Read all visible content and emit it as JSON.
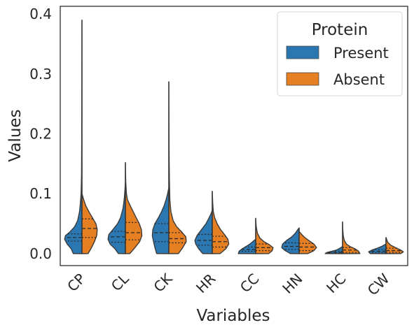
{
  "chart_data": {
    "type": "violin",
    "split": true,
    "xlabel": "Variables",
    "ylabel": "Values",
    "ylim": [
      -0.02,
      0.413
    ],
    "yticks": [
      0.0,
      0.1,
      0.2,
      0.3,
      0.4
    ],
    "ytick_labels": [
      "0.0",
      "0.1",
      "0.2",
      "0.3",
      "0.4"
    ],
    "categories": [
      "CP",
      "CL",
      "CK",
      "HR",
      "CC",
      "HN",
      "HC",
      "CW"
    ],
    "legend": {
      "title": "Protein",
      "placement": "upper-right"
    },
    "series": [
      {
        "name": "Present",
        "color": "#2b77b2",
        "violins": [
          {
            "min": 0.0,
            "max": 0.39,
            "q1": 0.021,
            "median": 0.027,
            "q3": 0.033,
            "profile": [
              [
                0.0,
                0.5
              ],
              [
                0.008,
                0.62
              ],
              [
                0.016,
                0.85
              ],
              [
                0.024,
                1.0
              ],
              [
                0.03,
                0.95
              ],
              [
                0.036,
                0.7
              ],
              [
                0.045,
                0.42
              ],
              [
                0.055,
                0.25
              ],
              [
                0.07,
                0.14
              ],
              [
                0.085,
                0.09
              ],
              [
                0.1,
                0.05
              ],
              [
                0.13,
                0.025
              ],
              [
                0.2,
                0.012
              ],
              [
                0.3,
                0.006
              ],
              [
                0.39,
                0.0
              ]
            ]
          },
          {
            "min": 0.0,
            "max": 0.118,
            "q1": 0.019,
            "median": 0.028,
            "q3": 0.037,
            "profile": [
              [
                0.0,
                0.4
              ],
              [
                0.008,
                0.6
              ],
              [
                0.016,
                0.88
              ],
              [
                0.024,
                1.0
              ],
              [
                0.032,
                0.95
              ],
              [
                0.04,
                0.72
              ],
              [
                0.05,
                0.45
              ],
              [
                0.06,
                0.28
              ],
              [
                0.075,
                0.14
              ],
              [
                0.09,
                0.07
              ],
              [
                0.105,
                0.03
              ],
              [
                0.118,
                0.0
              ]
            ]
          },
          {
            "min": 0.0,
            "max": 0.11,
            "q1": 0.02,
            "median": 0.035,
            "q3": 0.05,
            "profile": [
              [
                0.0,
                0.7
              ],
              [
                0.01,
                0.8
              ],
              [
                0.02,
                0.88
              ],
              [
                0.03,
                0.95
              ],
              [
                0.04,
                0.92
              ],
              [
                0.05,
                0.8
              ],
              [
                0.06,
                0.6
              ],
              [
                0.07,
                0.42
              ],
              [
                0.08,
                0.27
              ],
              [
                0.09,
                0.16
              ],
              [
                0.1,
                0.07
              ],
              [
                0.11,
                0.0
              ]
            ]
          },
          {
            "min": 0.0,
            "max": 0.072,
            "q1": 0.014,
            "median": 0.022,
            "q3": 0.032,
            "profile": [
              [
                0.0,
                0.55
              ],
              [
                0.008,
                0.78
              ],
              [
                0.016,
                0.95
              ],
              [
                0.022,
                1.0
              ],
              [
                0.03,
                0.88
              ],
              [
                0.04,
                0.62
              ],
              [
                0.05,
                0.36
              ],
              [
                0.06,
                0.18
              ],
              [
                0.066,
                0.08
              ],
              [
                0.072,
                0.0
              ]
            ]
          },
          {
            "min": 0.0,
            "max": 0.024,
            "q1": 0.004,
            "median": 0.007,
            "q3": 0.011,
            "profile": [
              [
                0.0,
                1.0
              ],
              [
                0.004,
                0.95
              ],
              [
                0.008,
                0.78
              ],
              [
                0.012,
                0.55
              ],
              [
                0.016,
                0.33
              ],
              [
                0.02,
                0.17
              ],
              [
                0.024,
                0.0
              ]
            ]
          },
          {
            "min": 0.0,
            "max": 0.043,
            "q1": 0.007,
            "median": 0.012,
            "q3": 0.018,
            "profile": [
              [
                0.0,
                0.5
              ],
              [
                0.005,
                0.8
              ],
              [
                0.01,
                1.0
              ],
              [
                0.016,
                0.95
              ],
              [
                0.022,
                0.72
              ],
              [
                0.028,
                0.42
              ],
              [
                0.034,
                0.22
              ],
              [
                0.039,
                0.1
              ],
              [
                0.043,
                0.0
              ]
            ]
          },
          {
            "min": 0.0,
            "max": 0.012,
            "q1": 0.001,
            "median": 0.002,
            "q3": 0.004,
            "profile": [
              [
                0.0,
                1.0
              ],
              [
                0.002,
                0.9
              ],
              [
                0.004,
                0.6
              ],
              [
                0.006,
                0.35
              ],
              [
                0.009,
                0.15
              ],
              [
                0.012,
                0.0
              ]
            ]
          },
          {
            "min": 0.0,
            "max": 0.016,
            "q1": 0.002,
            "median": 0.004,
            "q3": 0.007,
            "profile": [
              [
                0.0,
                0.9
              ],
              [
                0.003,
                1.0
              ],
              [
                0.006,
                0.8
              ],
              [
                0.009,
                0.5
              ],
              [
                0.012,
                0.25
              ],
              [
                0.016,
                0.0
              ]
            ]
          }
        ]
      },
      {
        "name": "Absent",
        "color": "#e67e22",
        "violins": [
          {
            "min": 0.0,
            "max": 0.1,
            "q1": 0.027,
            "median": 0.042,
            "q3": 0.058,
            "profile": [
              [
                0.0,
                0.35
              ],
              [
                0.01,
                0.55
              ],
              [
                0.02,
                0.72
              ],
              [
                0.03,
                0.85
              ],
              [
                0.04,
                0.88
              ],
              [
                0.05,
                0.8
              ],
              [
                0.06,
                0.6
              ],
              [
                0.07,
                0.4
              ],
              [
                0.08,
                0.22
              ],
              [
                0.09,
                0.1
              ],
              [
                0.1,
                0.0
              ]
            ]
          },
          {
            "min": 0.0,
            "max": 0.152,
            "q1": 0.023,
            "median": 0.035,
            "q3": 0.052,
            "profile": [
              [
                0.0,
                0.25
              ],
              [
                0.01,
                0.55
              ],
              [
                0.02,
                0.82
              ],
              [
                0.03,
                0.95
              ],
              [
                0.04,
                0.92
              ],
              [
                0.05,
                0.8
              ],
              [
                0.06,
                0.62
              ],
              [
                0.07,
                0.45
              ],
              [
                0.08,
                0.28
              ],
              [
                0.09,
                0.12
              ],
              [
                0.1,
                0.06
              ],
              [
                0.12,
                0.02
              ],
              [
                0.152,
                0.0
              ]
            ]
          },
          {
            "min": 0.0,
            "max": 0.287,
            "q1": 0.018,
            "median": 0.025,
            "q3": 0.035,
            "profile": [
              [
                0.0,
                0.55
              ],
              [
                0.01,
                0.8
              ],
              [
                0.02,
                1.0
              ],
              [
                0.028,
                0.98
              ],
              [
                0.036,
                0.75
              ],
              [
                0.045,
                0.45
              ],
              [
                0.055,
                0.25
              ],
              [
                0.07,
                0.12
              ],
              [
                0.09,
                0.06
              ],
              [
                0.12,
                0.035
              ],
              [
                0.16,
                0.018
              ],
              [
                0.22,
                0.008
              ],
              [
                0.287,
                0.0
              ]
            ]
          },
          {
            "min": 0.0,
            "max": 0.104,
            "q1": 0.011,
            "median": 0.02,
            "q3": 0.029,
            "profile": [
              [
                0.0,
                0.45
              ],
              [
                0.008,
                0.78
              ],
              [
                0.016,
                0.95
              ],
              [
                0.024,
                0.9
              ],
              [
                0.032,
                0.7
              ],
              [
                0.04,
                0.48
              ],
              [
                0.05,
                0.28
              ],
              [
                0.06,
                0.14
              ],
              [
                0.07,
                0.06
              ],
              [
                0.085,
                0.025
              ],
              [
                0.104,
                0.0
              ]
            ]
          },
          {
            "min": 0.0,
            "max": 0.059,
            "q1": 0.005,
            "median": 0.01,
            "q3": 0.016,
            "profile": [
              [
                0.0,
                0.75
              ],
              [
                0.005,
                0.95
              ],
              [
                0.01,
                1.0
              ],
              [
                0.015,
                0.78
              ],
              [
                0.02,
                0.48
              ],
              [
                0.026,
                0.24
              ],
              [
                0.034,
                0.1
              ],
              [
                0.045,
                0.03
              ],
              [
                0.059,
                0.0
              ]
            ]
          },
          {
            "min": 0.0,
            "max": 0.037,
            "q1": 0.005,
            "median": 0.011,
            "q3": 0.017,
            "profile": [
              [
                0.0,
                0.5
              ],
              [
                0.005,
                0.85
              ],
              [
                0.01,
                1.0
              ],
              [
                0.016,
                0.85
              ],
              [
                0.022,
                0.55
              ],
              [
                0.028,
                0.28
              ],
              [
                0.033,
                0.12
              ],
              [
                0.037,
                0.0
              ]
            ]
          },
          {
            "min": 0.0,
            "max": 0.053,
            "q1": 0.002,
            "median": 0.006,
            "q3": 0.01,
            "profile": [
              [
                0.0,
                1.0
              ],
              [
                0.004,
                0.92
              ],
              [
                0.008,
                0.72
              ],
              [
                0.012,
                0.42
              ],
              [
                0.016,
                0.22
              ],
              [
                0.022,
                0.1
              ],
              [
                0.03,
                0.04
              ],
              [
                0.04,
                0.015
              ],
              [
                0.053,
                0.0
              ]
            ]
          },
          {
            "min": 0.0,
            "max": 0.027,
            "q1": 0.002,
            "median": 0.005,
            "q3": 0.009,
            "profile": [
              [
                0.0,
                0.85
              ],
              [
                0.003,
                1.0
              ],
              [
                0.006,
                0.85
              ],
              [
                0.01,
                0.55
              ],
              [
                0.014,
                0.28
              ],
              [
                0.019,
                0.1
              ],
              [
                0.027,
                0.0
              ]
            ]
          }
        ]
      }
    ]
  }
}
